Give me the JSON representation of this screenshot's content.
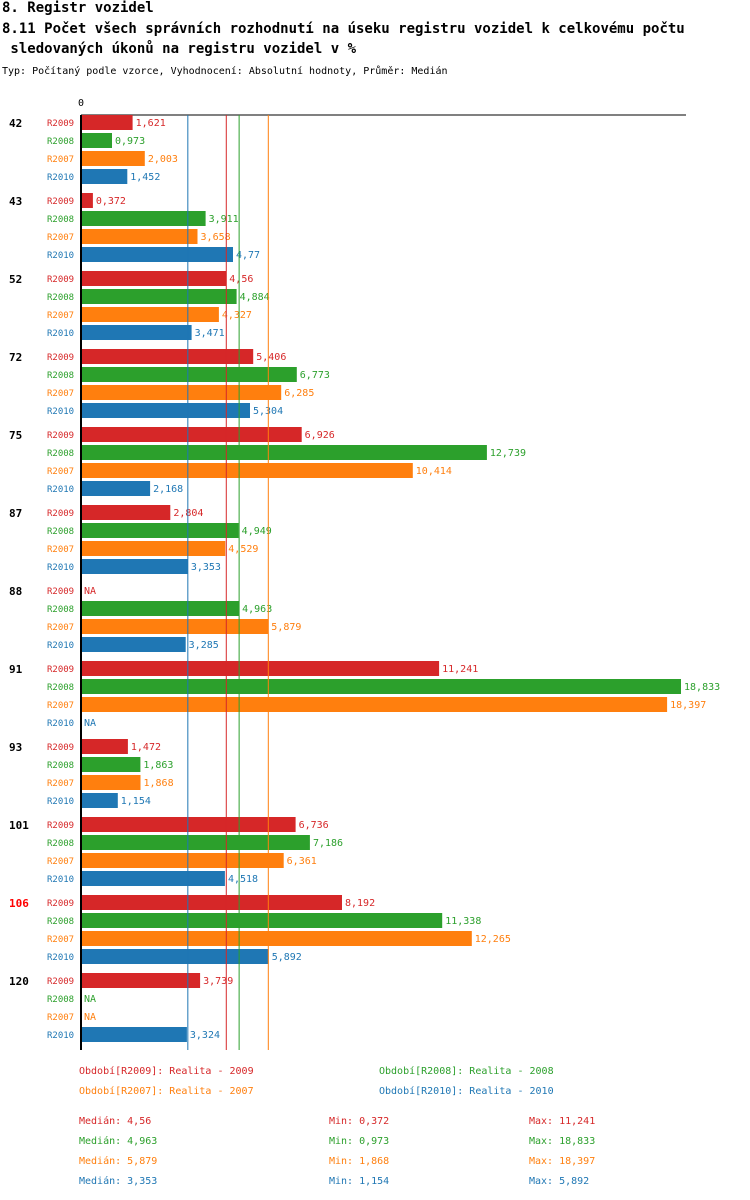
{
  "header": {
    "section": "8. Registr vozidel",
    "title_line1": "8.11 Počet všech správních rozhodnutí na úseku registru vozidel k celkovému počtu",
    "title_line2": " sledovaných úkonů na registru vozidel v %",
    "subtitle": "Typ: Počítaný podle vzorce, Vyhodnocení: Absolutní hodnoty, Průměr: Medián"
  },
  "colors": {
    "R2009": "#d62728",
    "R2008": "#2ca02c",
    "R2007": "#ff7f0e",
    "R2010": "#1f77b4",
    "highlight": "#ff0000"
  },
  "chart_data": {
    "type": "bar",
    "orientation": "horizontal",
    "xlim": [
      0,
      18.833
    ],
    "zero_label": "0",
    "na_label": "NA",
    "highlight_group": "106",
    "series": [
      {
        "name": "R2009",
        "label": "R2009",
        "values": [
          1.621,
          0.372,
          4.56,
          5.406,
          6.926,
          2.804,
          null,
          11.241,
          1.472,
          6.736,
          8.192,
          3.739
        ]
      },
      {
        "name": "R2008",
        "label": "R2008",
        "values": [
          0.973,
          3.911,
          4.884,
          6.773,
          12.739,
          4.949,
          4.963,
          18.833,
          1.863,
          7.186,
          11.338,
          null
        ]
      },
      {
        "name": "R2007",
        "label": "R2007",
        "values": [
          2.003,
          3.658,
          4.327,
          6.285,
          10.414,
          4.529,
          5.879,
          18.397,
          1.868,
          6.361,
          12.265,
          null
        ]
      },
      {
        "name": "R2010",
        "label": "R2010",
        "values": [
          1.452,
          4.77,
          3.471,
          5.304,
          2.168,
          3.353,
          3.285,
          null,
          1.154,
          4.518,
          5.892,
          3.324
        ]
      }
    ],
    "categories": [
      "42",
      "43",
      "52",
      "72",
      "75",
      "87",
      "88",
      "91",
      "93",
      "101",
      "106",
      "120"
    ],
    "value_labels": {
      "R2009": [
        "1,621",
        "0,372",
        "4,56",
        "5,406",
        "6,926",
        "2,804",
        "NA",
        "11,241",
        "1,472",
        "6,736",
        "8,192",
        "3,739"
      ],
      "R2008": [
        "0,973",
        "3,911",
        "4,884",
        "6,773",
        "12,739",
        "4,949",
        "4,963",
        "18,833",
        "1,863",
        "7,186",
        "11,338",
        "NA"
      ],
      "R2007": [
        "2,003",
        "3,658",
        "4,327",
        "6,285",
        "10,414",
        "4,529",
        "5,879",
        "18,397",
        "1,868",
        "6,361",
        "12,265",
        "NA"
      ],
      "R2010": [
        "1,452",
        "4,77",
        "3,471",
        "5,304",
        "2,168",
        "3,353",
        "3,285",
        "NA",
        "1,154",
        "4,518",
        "5,892",
        "3,324"
      ]
    },
    "median_lines": [
      {
        "series": "R2009",
        "value": 4.56
      },
      {
        "series": "R2008",
        "value": 4.963
      },
      {
        "series": "R2007",
        "value": 5.879
      },
      {
        "series": "R2010",
        "value": 3.353
      }
    ]
  },
  "legend": [
    {
      "series": "R2009",
      "text": "Období[R2009]: Realita - 2009"
    },
    {
      "series": "R2008",
      "text": "Období[R2008]: Realita - 2008"
    },
    {
      "series": "R2007",
      "text": "Období[R2007]: Realita - 2007"
    },
    {
      "series": "R2010",
      "text": "Období[R2010]: Realita - 2010"
    }
  ],
  "stats": [
    {
      "series": "R2009",
      "median": "Medián: 4,56",
      "min": "Min: 0,372",
      "max": "Max: 11,241"
    },
    {
      "series": "R2008",
      "median": "Medián: 4,963",
      "min": "Min: 0,973",
      "max": "Max: 18,833"
    },
    {
      "series": "R2007",
      "median": "Medián: 5,879",
      "min": "Min: 1,868",
      "max": "Max: 18,397"
    },
    {
      "series": "R2010",
      "median": "Medián: 3,353",
      "min": "Min: 1,154",
      "max": "Max: 5,892"
    }
  ]
}
